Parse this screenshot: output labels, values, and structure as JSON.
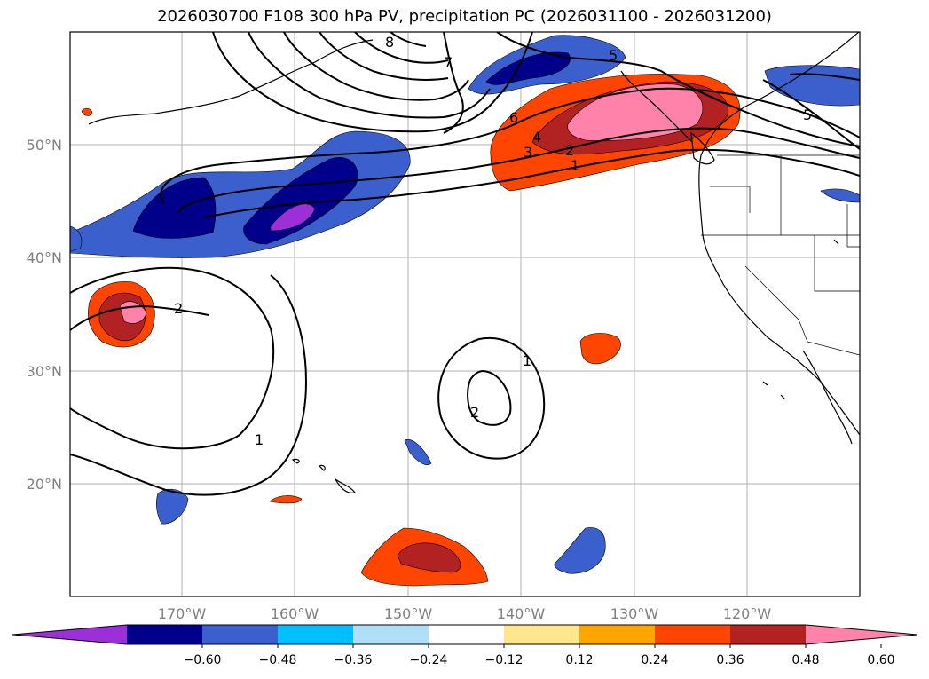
{
  "title": "2026030700 F108 300 hPa PV, precipitation PC (2026031100 - 2026031200)",
  "map": {
    "lat_ticks": [
      "50°N",
      "40°N",
      "30°N",
      "20°N"
    ],
    "lon_ticks": [
      "170°W",
      "160°W",
      "150°W",
      "140°W",
      "130°W",
      "120°W"
    ],
    "contour_labels": [
      "7",
      "8",
      "6",
      "5",
      "4",
      "3",
      "2",
      "1",
      "5",
      "2",
      "1",
      "1",
      "2"
    ]
  },
  "colorbar": {
    "tick_labels": [
      "-0.60",
      "-0.48",
      "-0.36",
      "-0.24",
      "-0.12",
      "0.12",
      "0.24",
      "0.36",
      "0.48",
      "0.60"
    ],
    "colors": [
      "#9b30d9",
      "#00008b",
      "#3b5fcd",
      "#00bfff",
      "#b0e0f8",
      "#ffffff",
      "#ffe68c",
      "#ffa500",
      "#ff4500",
      "#b22222",
      "#ff82ab"
    ]
  }
}
